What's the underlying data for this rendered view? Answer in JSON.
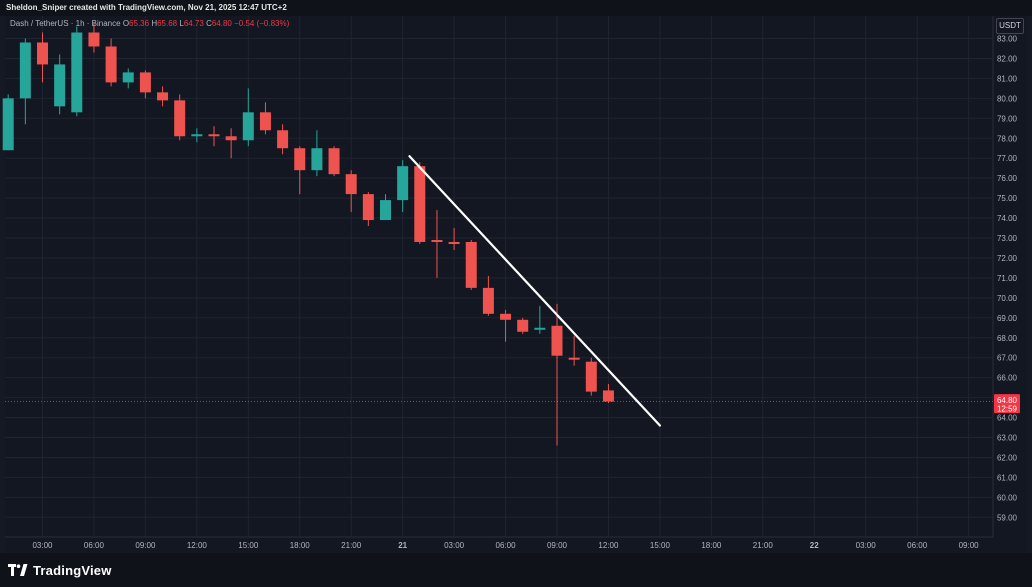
{
  "header": {
    "attribution": "Sheldon_Sniper created with TradingView.com, Nov 21, 2025 12:47 UTC+2"
  },
  "legend": {
    "symbol": "Dash / TetherUS · 1h · Binance",
    "open_label": "O",
    "open": "65.36",
    "high_label": "H",
    "high": "65.68",
    "low_label": "L",
    "low": "64.73",
    "close_label": "C",
    "close": "64.80",
    "change": "−0.54 (−0.83%)"
  },
  "currency_button": "USDT",
  "price_tag": {
    "price": "64.80",
    "countdown": "12:59"
  },
  "footer": {
    "brand": "TradingView"
  },
  "colors": {
    "up": "#26a69a",
    "down": "#ef5350",
    "trendline": "#ffffff",
    "background": "#131722"
  },
  "chart_data": {
    "type": "candlestick",
    "ylim": [
      58,
      83.9
    ],
    "y_ticks": [
      "59.00",
      "60.00",
      "61.00",
      "62.00",
      "63.00",
      "64.00",
      "65.00",
      "66.00",
      "67.00",
      "68.00",
      "69.00",
      "70.00",
      "71.00",
      "72.00",
      "73.00",
      "74.00",
      "75.00",
      "76.00",
      "77.00",
      "78.00",
      "79.00",
      "80.00",
      "81.00",
      "82.00",
      "83.00"
    ],
    "x_ticks": [
      {
        "label": "03:00",
        "i": 2
      },
      {
        "label": "06:00",
        "i": 5
      },
      {
        "label": "09:00",
        "i": 8
      },
      {
        "label": "12:00",
        "i": 11
      },
      {
        "label": "15:00",
        "i": 14
      },
      {
        "label": "18:00",
        "i": 17
      },
      {
        "label": "21:00",
        "i": 20
      },
      {
        "label": "21",
        "i": 23,
        "bold": true
      },
      {
        "label": "03:00",
        "i": 26
      },
      {
        "label": "06:00",
        "i": 29
      },
      {
        "label": "09:00",
        "i": 32
      },
      {
        "label": "12:00",
        "i": 35
      },
      {
        "label": "15:00",
        "i": 38
      },
      {
        "label": "18:00",
        "i": 41
      },
      {
        "label": "21:00",
        "i": 44
      },
      {
        "label": "22",
        "i": 47,
        "bold": true
      },
      {
        "label": "03:00",
        "i": 50
      },
      {
        "label": "06:00",
        "i": 53
      },
      {
        "label": "09:00",
        "i": 56
      }
    ],
    "candles": [
      {
        "o": 77.4,
        "h": 80.2,
        "l": 77.4,
        "c": 80.0
      },
      {
        "o": 80.0,
        "h": 83.0,
        "l": 78.7,
        "c": 82.8
      },
      {
        "o": 82.8,
        "h": 83.3,
        "l": 80.8,
        "c": 81.7
      },
      {
        "o": 79.6,
        "h": 82.2,
        "l": 79.2,
        "c": 81.7
      },
      {
        "o": 79.3,
        "h": 83.6,
        "l": 79.1,
        "c": 83.3
      },
      {
        "o": 83.3,
        "h": 83.8,
        "l": 82.3,
        "c": 82.6
      },
      {
        "o": 82.6,
        "h": 83.0,
        "l": 80.6,
        "c": 80.8
      },
      {
        "o": 80.8,
        "h": 81.5,
        "l": 80.5,
        "c": 81.3
      },
      {
        "o": 81.3,
        "h": 81.4,
        "l": 80.0,
        "c": 80.3
      },
      {
        "o": 80.3,
        "h": 80.6,
        "l": 79.6,
        "c": 79.9
      },
      {
        "o": 79.9,
        "h": 80.2,
        "l": 77.9,
        "c": 78.1
      },
      {
        "o": 78.1,
        "h": 78.5,
        "l": 77.8,
        "c": 78.2
      },
      {
        "o": 78.2,
        "h": 78.6,
        "l": 77.6,
        "c": 78.1
      },
      {
        "o": 78.1,
        "h": 78.5,
        "l": 77.0,
        "c": 77.9
      },
      {
        "o": 77.9,
        "h": 80.5,
        "l": 77.6,
        "c": 79.3
      },
      {
        "o": 79.3,
        "h": 79.8,
        "l": 78.2,
        "c": 78.4
      },
      {
        "o": 78.4,
        "h": 78.7,
        "l": 77.2,
        "c": 77.5
      },
      {
        "o": 77.5,
        "h": 77.6,
        "l": 75.2,
        "c": 76.4
      },
      {
        "o": 76.4,
        "h": 78.4,
        "l": 76.1,
        "c": 77.5
      },
      {
        "o": 77.5,
        "h": 77.6,
        "l": 76.1,
        "c": 76.2
      },
      {
        "o": 76.2,
        "h": 76.4,
        "l": 74.3,
        "c": 75.2
      },
      {
        "o": 75.2,
        "h": 75.3,
        "l": 73.6,
        "c": 73.9
      },
      {
        "o": 73.9,
        "h": 75.2,
        "l": 73.9,
        "c": 74.9
      },
      {
        "o": 74.9,
        "h": 76.9,
        "l": 74.3,
        "c": 76.6
      },
      {
        "o": 76.6,
        "h": 76.8,
        "l": 72.7,
        "c": 72.8
      },
      {
        "o": 72.9,
        "h": 74.4,
        "l": 71.0,
        "c": 72.8
      },
      {
        "o": 72.8,
        "h": 73.5,
        "l": 72.4,
        "c": 72.7
      },
      {
        "o": 72.8,
        "h": 72.9,
        "l": 70.4,
        "c": 70.5
      },
      {
        "o": 70.5,
        "h": 71.1,
        "l": 69.1,
        "c": 69.2
      },
      {
        "o": 69.2,
        "h": 69.4,
        "l": 67.8,
        "c": 68.9
      },
      {
        "o": 68.9,
        "h": 69.0,
        "l": 68.2,
        "c": 68.3
      },
      {
        "o": 68.4,
        "h": 69.6,
        "l": 68.2,
        "c": 68.5
      },
      {
        "o": 68.6,
        "h": 69.7,
        "l": 62.6,
        "c": 67.1
      },
      {
        "o": 67.0,
        "h": 68.1,
        "l": 66.6,
        "c": 66.9
      },
      {
        "o": 66.8,
        "h": 67.0,
        "l": 65.1,
        "c": 65.3
      },
      {
        "o": 65.36,
        "h": 65.68,
        "l": 64.73,
        "c": 64.8
      }
    ],
    "trendline": {
      "from": {
        "i": 23.4,
        "y": 77.1
      },
      "to": {
        "i": 38.0,
        "y": 63.6
      }
    },
    "last_price": 64.8
  }
}
